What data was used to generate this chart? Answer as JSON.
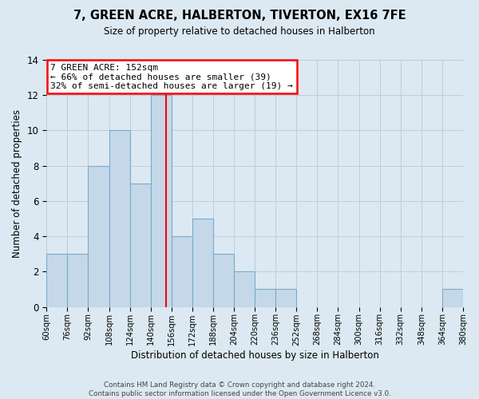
{
  "title": "7, GREEN ACRE, HALBERTON, TIVERTON, EX16 7FE",
  "subtitle": "Size of property relative to detached houses in Halberton",
  "xlabel": "Distribution of detached houses by size in Halberton",
  "ylabel": "Number of detached properties",
  "bin_edges": [
    60,
    76,
    92,
    108,
    124,
    140,
    156,
    172,
    188,
    204,
    220,
    236,
    252,
    268,
    284,
    300,
    316,
    332,
    348,
    364,
    380
  ],
  "counts": [
    3,
    3,
    8,
    10,
    7,
    12,
    4,
    5,
    3,
    2,
    1,
    1,
    0,
    0,
    0,
    0,
    0,
    0,
    0,
    1
  ],
  "bar_color": "#c5d8ea",
  "bar_edge_color": "#7aaaca",
  "grid_color": "#b8cfe0",
  "property_line_x": 152,
  "property_line_color": "red",
  "annotation_text": "7 GREEN ACRE: 152sqm\n← 66% of detached houses are smaller (39)\n32% of semi-detached houses are larger (19) →",
  "annotation_box_color": "white",
  "annotation_box_edge_color": "red",
  "ylim": [
    0,
    14
  ],
  "yticks": [
    0,
    2,
    4,
    6,
    8,
    10,
    12,
    14
  ],
  "footer_line1": "Contains HM Land Registry data © Crown copyright and database right 2024.",
  "footer_line2": "Contains public sector information licensed under the Open Government Licence v3.0.",
  "background_color": "#dce9f2"
}
